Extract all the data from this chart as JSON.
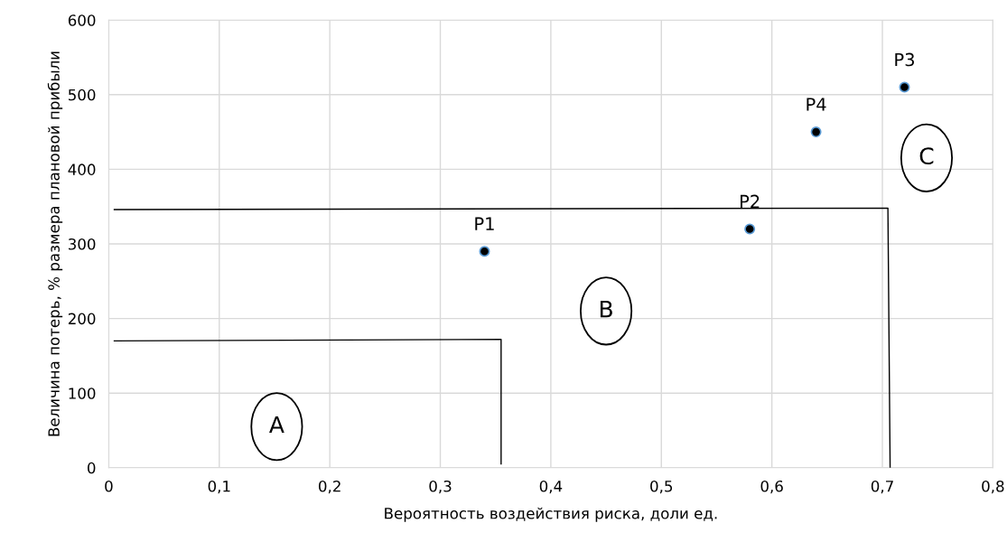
{
  "chart_data": {
    "type": "scatter",
    "xlabel": "Вероятность воздействия риска, доли ед.",
    "ylabel": "Величина потерь, % размера плановой прибыли",
    "xlim": [
      0,
      0.8
    ],
    "xticks": [
      0,
      {
        "value": 0.1,
        "label": "0,1"
      },
      {
        "value": 0.2,
        "label": "0,2"
      },
      {
        "value": 0.3,
        "label": "0,3"
      },
      {
        "value": 0.4,
        "label": "0,4"
      },
      {
        "value": 0.5,
        "label": "0,5"
      },
      {
        "value": 0.6,
        "label": "0,6"
      },
      {
        "value": 0.7,
        "label": "0,7"
      },
      {
        "value": 0.8,
        "label": "0,8"
      }
    ],
    "ylim": [
      0,
      600
    ],
    "yticks": [
      0,
      100,
      200,
      300,
      400,
      500,
      600
    ],
    "grid": true,
    "marker": "circle",
    "series": [
      {
        "color": "#000000",
        "x": [
          0.34,
          0.58,
          0.72,
          0.64
        ],
        "values": [
          290,
          320,
          510,
          450
        ]
      },
      {
        "type": "line",
        "marker": "none",
        "color": "#000000",
        "x": [
          0.005,
          0.355,
          0.355
        ],
        "values": [
          170,
          172,
          5
        ]
      },
      {
        "type": "line",
        "marker": "none",
        "color": "#000000",
        "x": [
          0.005,
          0.705,
          0.707
        ],
        "values": [
          346,
          348,
          0
        ]
      }
    ],
    "annotations": [
      {
        "text": "P1",
        "x": 0.34,
        "y": 290
      },
      {
        "text": "P2",
        "x": 0.58,
        "y": 320
      },
      {
        "text": "P3",
        "x": 0.72,
        "y": 510
      },
      {
        "text": "P4",
        "x": 0.64,
        "y": 450
      },
      "A",
      "B",
      "C"
    ]
  }
}
